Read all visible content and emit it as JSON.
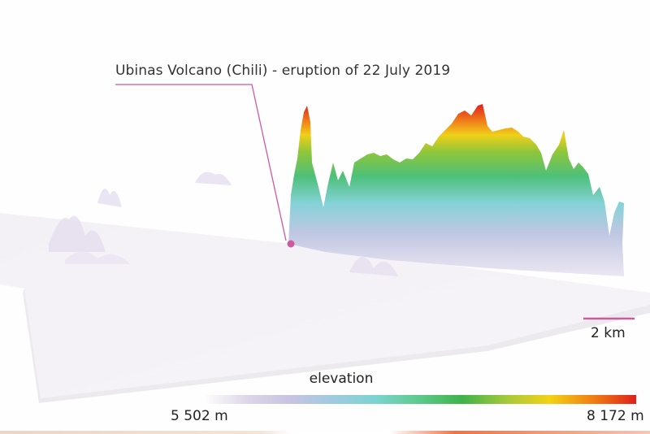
{
  "annotation": {
    "label": "Ubinas Volcano (Chili) - eruption of 22 July 2019",
    "marker_color": "#cc5aa0"
  },
  "scale_bar": {
    "label": "2 km",
    "color": "#cc5aa0"
  },
  "legend": {
    "title": "elevation",
    "min_label": "5 502 m",
    "max_label": "8 172 m",
    "colors": [
      "#ffffff",
      "#ded6e8",
      "#c8c3e1",
      "#9fcbe0",
      "#7cd3cf",
      "#5dc98a",
      "#3fb24a",
      "#a4c93a",
      "#f3d214",
      "#f07f12",
      "#e0201c"
    ]
  },
  "elevation_range_m": [
    5502,
    8172
  ]
}
